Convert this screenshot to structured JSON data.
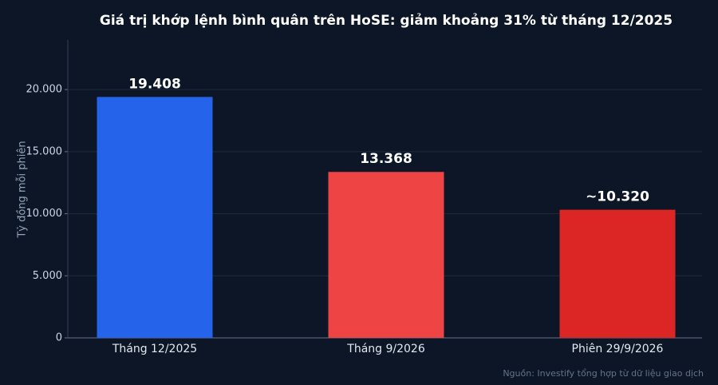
{
  "chart_data": {
    "type": "bar",
    "title": "Giá trị khớp lệnh bình quân trên HoSE: giảm khoảng 31% từ tháng 12/2025",
    "y_label": "Tỷ đồng mỗi phiên",
    "source": "Nguồn: Investify tổng hợp từ dữ liệu giao dịch",
    "categories": [
      "Tháng 12/2025",
      "Tháng 9/2026",
      "Phiên 29/9/2026"
    ],
    "values": [
      19408,
      13368,
      10320
    ],
    "value_labels": [
      "19.408",
      "13.368",
      "~10.320"
    ],
    "colors": [
      "#2563eb",
      "#ef4444",
      "#dc2626"
    ],
    "ylim": [
      0,
      24000
    ],
    "yticks": [
      0,
      {
        "value": 5000,
        "label": "5.000"
      },
      {
        "value": 10000,
        "label": "10.000"
      },
      {
        "value": 15000,
        "label": "15.000"
      },
      {
        "value": 20000,
        "label": "20.000"
      }
    ],
    "grid": true
  }
}
